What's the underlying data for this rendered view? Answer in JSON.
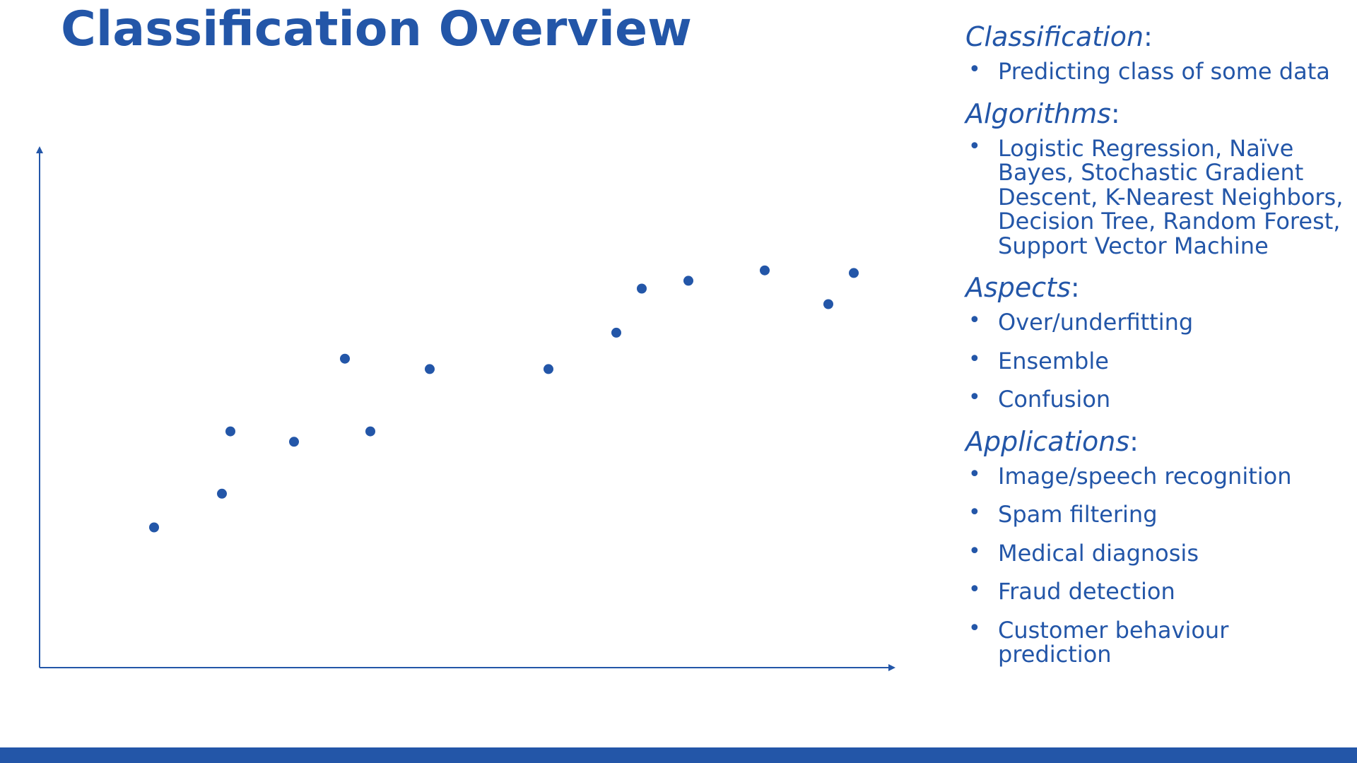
{
  "title": "Classification Overview",
  "colors": {
    "accent": "#2356a8",
    "background": "#ffffff"
  },
  "chart_data": {
    "type": "scatter",
    "title": "",
    "xlabel": "",
    "ylabel": "",
    "xlim": [
      0,
      100
    ],
    "ylim": [
      0,
      100
    ],
    "grid": false,
    "points": [
      {
        "x": 13.5,
        "y": 27.0
      },
      {
        "x": 21.5,
        "y": 33.5
      },
      {
        "x": 22.5,
        "y": 45.5
      },
      {
        "x": 30.0,
        "y": 43.5
      },
      {
        "x": 36.0,
        "y": 59.5
      },
      {
        "x": 39.0,
        "y": 45.5
      },
      {
        "x": 46.0,
        "y": 57.5
      },
      {
        "x": 60.0,
        "y": 57.5
      },
      {
        "x": 68.0,
        "y": 64.5
      },
      {
        "x": 71.0,
        "y": 73.0
      },
      {
        "x": 76.5,
        "y": 74.5
      },
      {
        "x": 85.5,
        "y": 76.5
      },
      {
        "x": 93.0,
        "y": 70.0
      },
      {
        "x": 96.0,
        "y": 76.0
      }
    ]
  },
  "sections": [
    {
      "heading": "Classification",
      "suffix": ":",
      "items": [
        "Predicting class of some data"
      ]
    },
    {
      "heading": "Algorithms",
      "suffix": ":",
      "items": [
        "Logistic Regression, Naïve Bayes, Stochastic Gradient Descent, K-Nearest Neighbors, Decision Tree, Random Forest, Support Vector Machine"
      ]
    },
    {
      "heading": "Aspects",
      "suffix": ":",
      "items": [
        "Over/underfitting",
        "Ensemble",
        "Confusion"
      ]
    },
    {
      "heading": "Applications",
      "suffix": ":",
      "items": [
        "Image/speech recognition",
        "Spam filtering",
        "Medical diagnosis",
        "Fraud detection",
        "Customer behaviour prediction"
      ]
    }
  ],
  "bullet_glyph": "•"
}
